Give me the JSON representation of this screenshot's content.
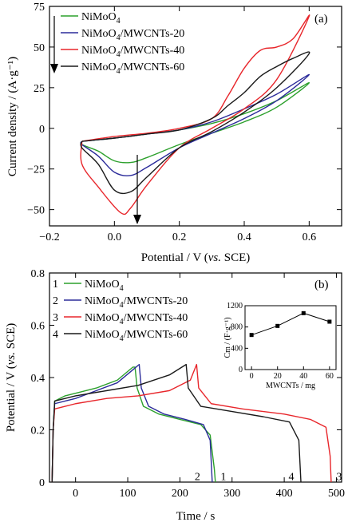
{
  "chart_data": [
    {
      "type": "line",
      "panel_label": "(a)",
      "xlabel_main": "Potential / V (",
      "xlabel_italic": "vs.",
      "xlabel_end": " SCE)",
      "ylabel": "Current density / (A·g⁻¹)",
      "xlim": [
        -0.2,
        0.7
      ],
      "ylim": [
        -60,
        75
      ],
      "xticks": [
        -0.2,
        0,
        0.2,
        0.4,
        0.6
      ],
      "xtick_labels": [
        "−0.2",
        "0.0",
        "0.2",
        "0.4",
        "0.6"
      ],
      "yticks": [
        -50,
        -25,
        0,
        25,
        50,
        75
      ],
      "ytick_labels": [
        "−50",
        "−25",
        "0",
        "25",
        "50",
        "75"
      ],
      "series": [
        {
          "name": "NiMoO4",
          "color": "#2ca02c",
          "anodic": [
            [
              -0.1,
              -8
            ],
            [
              0,
              -6
            ],
            [
              0.1,
              -3.5
            ],
            [
              0.2,
              -1
            ],
            [
              0.3,
              3
            ],
            [
              0.4,
              9
            ],
            [
              0.5,
              17
            ],
            [
              0.6,
              28
            ]
          ],
          "cathodic": [
            [
              0.6,
              25
            ],
            [
              0.5,
              13
            ],
            [
              0.4,
              4
            ],
            [
              0.3,
              -3
            ],
            [
              0.2,
              -10
            ],
            [
              0.1,
              -18
            ],
            [
              0.05,
              -21
            ],
            [
              0,
              -20
            ],
            [
              -0.05,
              -14
            ],
            [
              -0.1,
              -10
            ]
          ]
        },
        {
          "name": "NiMoO4/MWCNTs-20",
          "color": "#2b2b9a",
          "anodic": [
            [
              -0.1,
              -8
            ],
            [
              0,
              -6
            ],
            [
              0.1,
              -3.5
            ],
            [
              0.2,
              -1
            ],
            [
              0.3,
              4
            ],
            [
              0.4,
              12
            ],
            [
              0.5,
              21
            ],
            [
              0.6,
              33
            ]
          ],
          "cathodic": [
            [
              0.6,
              30
            ],
            [
              0.5,
              17
            ],
            [
              0.4,
              6
            ],
            [
              0.3,
              -3
            ],
            [
              0.2,
              -12
            ],
            [
              0.1,
              -24
            ],
            [
              0.05,
              -29
            ],
            [
              0,
              -27
            ],
            [
              -0.05,
              -17
            ],
            [
              -0.1,
              -10
            ]
          ]
        },
        {
          "name": "NiMoO4/MWCNTs-40",
          "color": "#e8262b",
          "anodic": [
            [
              -0.1,
              -8
            ],
            [
              0,
              -5
            ],
            [
              0.1,
              -3
            ],
            [
              0.2,
              0
            ],
            [
              0.3,
              6
            ],
            [
              0.35,
              20
            ],
            [
              0.4,
              37
            ],
            [
              0.45,
              48
            ],
            [
              0.5,
              50
            ],
            [
              0.55,
              55
            ],
            [
              0.6,
              69
            ]
          ],
          "cathodic": [
            [
              0.6,
              60
            ],
            [
              0.5,
              30
            ],
            [
              0.4,
              12
            ],
            [
              0.3,
              0
            ],
            [
              0.2,
              -12
            ],
            [
              0.1,
              -35
            ],
            [
              0.05,
              -49
            ],
            [
              0.02,
              -52
            ],
            [
              -0.05,
              -36
            ],
            [
              -0.1,
              -22
            ]
          ]
        },
        {
          "name": "NiMoO4/MWCNTs-60",
          "color": "#1a1a1a",
          "anodic": [
            [
              -0.1,
              -8
            ],
            [
              0,
              -6
            ],
            [
              0.1,
              -3.5
            ],
            [
              0.2,
              -1
            ],
            [
              0.3,
              6
            ],
            [
              0.35,
              14
            ],
            [
              0.4,
              22
            ],
            [
              0.45,
              32
            ],
            [
              0.5,
              38
            ],
            [
              0.55,
              43
            ],
            [
              0.6,
              46
            ]
          ],
          "cathodic": [
            [
              0.6,
              43
            ],
            [
              0.5,
              25
            ],
            [
              0.4,
              10
            ],
            [
              0.3,
              -2
            ],
            [
              0.2,
              -12
            ],
            [
              0.1,
              -30
            ],
            [
              0.05,
              -39
            ],
            [
              0,
              -38
            ],
            [
              -0.05,
              -22
            ],
            [
              -0.1,
              -12
            ]
          ]
        }
      ],
      "legend_names": [
        "NiMoO",
        "NiMoO",
        "NiMoO",
        "NiMoO"
      ],
      "legend_subs": [
        "4",
        "4",
        "4",
        "4"
      ],
      "legend_suffix": [
        "",
        "/MWCNTs-20",
        "/MWCNTs-40",
        "/MWCNTs-60"
      ]
    },
    {
      "type": "line",
      "panel_label": "(b)",
      "xlabel": "Time / s",
      "ylabel_main": "Potential / V (",
      "ylabel_italic": "vs.",
      "ylabel_end": " SCE)",
      "xlim": [
        -50,
        510
      ],
      "ylim": [
        0,
        0.8
      ],
      "xticks": [
        0,
        100,
        200,
        300,
        400,
        500
      ],
      "xtick_labels": [
        "0",
        "100",
        "200",
        "300",
        "400",
        "500"
      ],
      "yticks": [
        0,
        0.2,
        0.4,
        0.6,
        0.8
      ],
      "ytick_labels": [
        "0",
        "0.2",
        "0.4",
        "0.6",
        "0.8"
      ],
      "series": [
        {
          "name": "NiMoO4",
          "number": "1",
          "color": "#2ca02c",
          "points": [
            [
              -45,
              0
            ],
            [
              -43,
              0.2
            ],
            [
              -40,
              0.31
            ],
            [
              -20,
              0.33
            ],
            [
              0,
              0.34
            ],
            [
              40,
              0.36
            ],
            [
              80,
              0.39
            ],
            [
              110,
              0.44
            ],
            [
              114,
              0.44
            ],
            [
              118,
              0.36
            ],
            [
              130,
              0.29
            ],
            [
              160,
              0.26
            ],
            [
              200,
              0.24
            ],
            [
              240,
              0.22
            ],
            [
              258,
              0.18
            ],
            [
              266,
              0.05
            ],
            [
              268,
              0
            ]
          ]
        },
        {
          "name": "NiMoO4/MWCNTs-20",
          "number": "2",
          "color": "#2b2b9a",
          "points": [
            [
              -45,
              0
            ],
            [
              -43,
              0.2
            ],
            [
              -40,
              0.3
            ],
            [
              -20,
              0.31
            ],
            [
              0,
              0.32
            ],
            [
              40,
              0.35
            ],
            [
              80,
              0.38
            ],
            [
              110,
              0.43
            ],
            [
              122,
              0.45
            ],
            [
              126,
              0.36
            ],
            [
              140,
              0.29
            ],
            [
              170,
              0.26
            ],
            [
              210,
              0.24
            ],
            [
              245,
              0.22
            ],
            [
              258,
              0.16
            ],
            [
              262,
              0
            ]
          ]
        },
        {
          "name": "NiMoO4/MWCNTs-40",
          "number": "3",
          "color": "#e8262b",
          "points": [
            [
              -45,
              0
            ],
            [
              -43,
              0.2
            ],
            [
              -40,
              0.28
            ],
            [
              -20,
              0.29
            ],
            [
              0,
              0.3
            ],
            [
              60,
              0.32
            ],
            [
              120,
              0.33
            ],
            [
              180,
              0.35
            ],
            [
              220,
              0.39
            ],
            [
              232,
              0.45
            ],
            [
              236,
              0.36
            ],
            [
              260,
              0.3
            ],
            [
              320,
              0.28
            ],
            [
              400,
              0.26
            ],
            [
              450,
              0.24
            ],
            [
              480,
              0.21
            ],
            [
              488,
              0.1
            ],
            [
              490,
              0
            ]
          ]
        },
        {
          "name": "NiMoO4/MWCNTs-60",
          "number": "4",
          "color": "#1a1a1a",
          "points": [
            [
              -45,
              0
            ],
            [
              -43,
              0.2
            ],
            [
              -40,
              0.31
            ],
            [
              -20,
              0.32
            ],
            [
              0,
              0.33
            ],
            [
              60,
              0.35
            ],
            [
              120,
              0.37
            ],
            [
              180,
              0.41
            ],
            [
              212,
              0.45
            ],
            [
              216,
              0.36
            ],
            [
              240,
              0.29
            ],
            [
              300,
              0.27
            ],
            [
              360,
              0.25
            ],
            [
              410,
              0.23
            ],
            [
              428,
              0.16
            ],
            [
              432,
              0
            ]
          ]
        }
      ],
      "legend_names": [
        "NiMoO",
        "NiMoO",
        "NiMoO",
        "NiMoO"
      ],
      "legend_subs": [
        "4",
        "4",
        "4",
        "4"
      ],
      "legend_suffix": [
        "",
        "/MWCNTs-20",
        "/MWCNTs-40",
        "/MWCNTs-60"
      ],
      "legend_numbers": [
        "1",
        "2",
        "3",
        "4"
      ],
      "curve_labels": [
        "1",
        "2",
        "3",
        "4"
      ],
      "inset": {
        "type": "line",
        "xlabel": "MWCNTs / mg",
        "ylabel": "Cm / (F·g⁻¹)",
        "x": [
          0,
          20,
          40,
          60
        ],
        "y": [
          650,
          820,
          1060,
          900
        ],
        "xlim": [
          -5,
          65
        ],
        "ylim": [
          0,
          1200
        ],
        "xticks": [
          0,
          20,
          40,
          60
        ],
        "yticks": [
          0,
          400,
          800,
          1200
        ]
      }
    }
  ]
}
